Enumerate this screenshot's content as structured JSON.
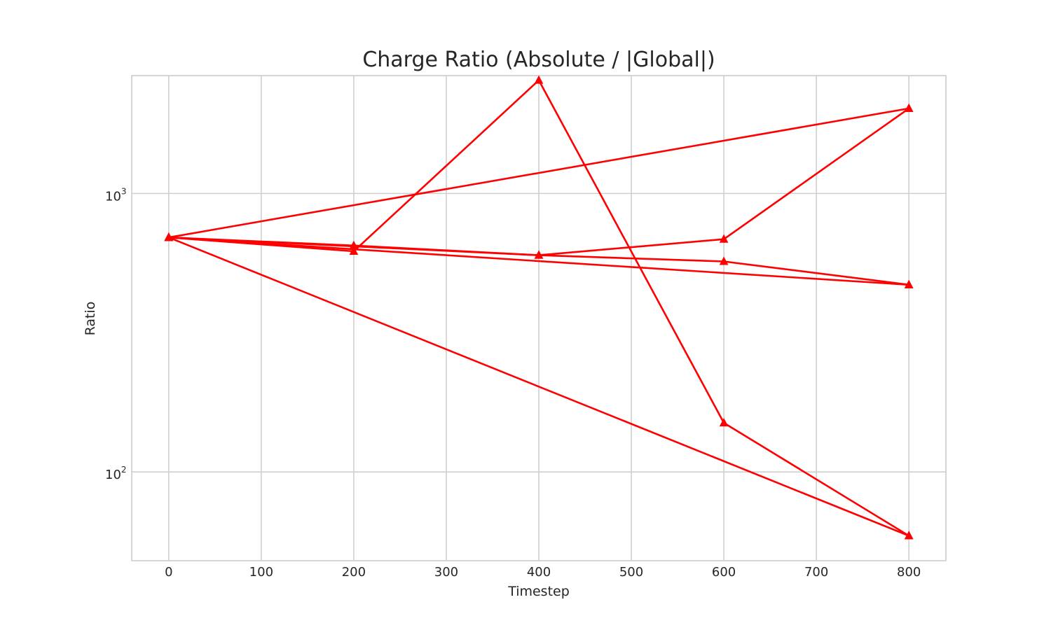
{
  "chart_data": {
    "type": "line",
    "title": "Charge Ratio (Absolute / |Global|)",
    "xlabel": "Timestep",
    "ylabel": "Ratio",
    "x_ticks": [
      0,
      100,
      200,
      300,
      400,
      500,
      600,
      700,
      800
    ],
    "xlim": [
      -40,
      840
    ],
    "yscale": "log",
    "ylim": [
      48,
      2650
    ],
    "y_ticks": [
      {
        "base": "10",
        "exp": "2",
        "value": 100
      },
      {
        "base": "10",
        "exp": "3",
        "value": 1000
      }
    ],
    "grid": true,
    "legend": "none",
    "marker": "triangle",
    "color": "#ff0000",
    "series": [
      {
        "x": [
          0,
          200,
          400,
          600,
          800
        ],
        "values": [
          695,
          620,
          2550,
          150,
          59
        ]
      },
      {
        "x": [
          0,
          800
        ],
        "values": [
          695,
          2020
        ]
      },
      {
        "x": [
          0,
          200,
          400,
          600,
          800
        ],
        "values": [
          695,
          650,
          600,
          685,
          2020
        ]
      },
      {
        "x": [
          0,
          400,
          600,
          800
        ],
        "values": [
          695,
          600,
          570,
          470
        ]
      },
      {
        "x": [
          0,
          800
        ],
        "values": [
          695,
          470
        ]
      },
      {
        "x": [
          0,
          800
        ],
        "values": [
          695,
          59
        ]
      }
    ]
  }
}
